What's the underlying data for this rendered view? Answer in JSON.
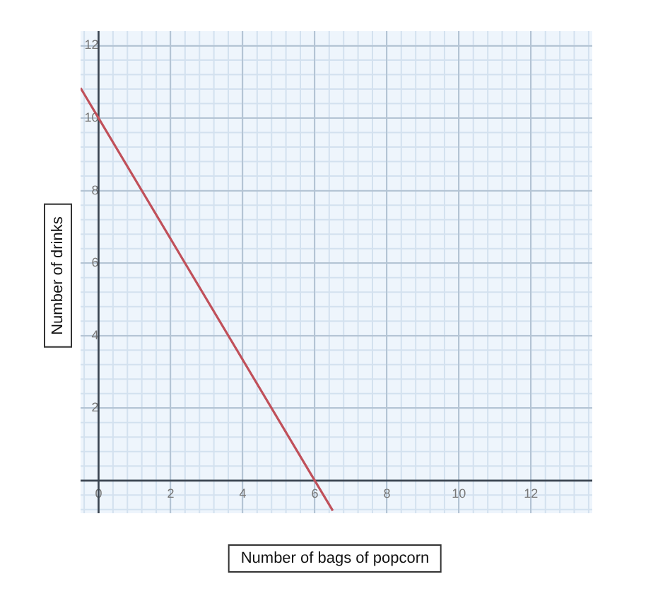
{
  "chart_data": {
    "type": "line",
    "xlabel": "Number of bags of popcorn",
    "ylabel": "Number of drinks",
    "series": [
      {
        "color": "#c0505a",
        "x": [
          -0.5,
          0,
          6,
          6.5
        ],
        "values": [
          10.83,
          10,
          0,
          -0.83
        ]
      }
    ],
    "xlim": [
      -0.5,
      13.7
    ],
    "ylim": [
      -0.9,
      12.4
    ],
    "xticks": [
      0,
      2,
      4,
      6,
      8,
      10,
      12
    ],
    "yticks": [
      2,
      4,
      6,
      8,
      10,
      12
    ],
    "grid": true,
    "legend": false,
    "marker": "none",
    "line_style": "solid"
  }
}
